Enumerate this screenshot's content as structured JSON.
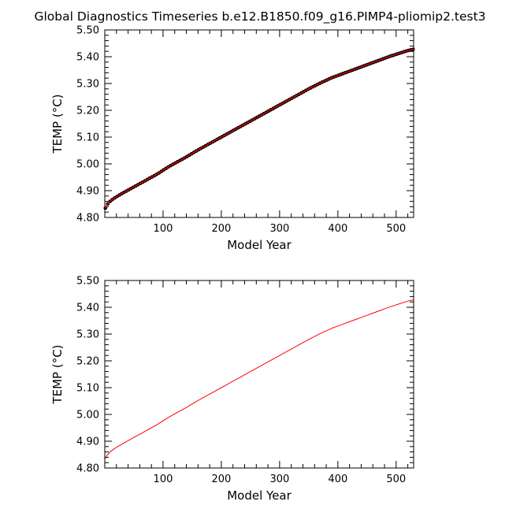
{
  "title": "Global Diagnostics Timeseries b.e12.B1850.f09_g16.PIMP4-pliomip2.test3",
  "colors": {
    "line": "#ff0000",
    "marker": "#000000",
    "axis": "#000000"
  },
  "chart_data": [
    {
      "type": "line",
      "xlabel": "Model Year",
      "ylabel": "TEMP (°C)",
      "xlim": [
        0,
        530
      ],
      "ylim": [
        4.8,
        5.5
      ],
      "x_ticks": [
        100,
        200,
        300,
        400,
        500
      ],
      "y_ticks": [
        "4.80",
        "4.90",
        "5.00",
        "5.10",
        "5.20",
        "5.30",
        "5.40",
        "5.50"
      ],
      "markers": true,
      "series": [
        {
          "x": [
            1,
            3,
            6,
            10,
            15,
            20,
            30,
            40,
            50,
            60,
            70,
            80,
            90,
            100,
            110,
            120,
            130,
            140,
            150,
            160,
            170,
            180,
            190,
            200,
            210,
            220,
            230,
            240,
            250,
            260,
            270,
            280,
            290,
            300,
            310,
            320,
            330,
            340,
            350,
            360,
            370,
            380,
            390,
            400,
            410,
            420,
            430,
            440,
            450,
            460,
            470,
            480,
            490,
            500,
            510,
            520,
            530
          ],
          "values": [
            4.835,
            4.845,
            4.853,
            4.862,
            4.87,
            4.877,
            4.89,
            4.902,
            4.914,
            4.926,
            4.938,
            4.95,
            4.962,
            4.976,
            4.99,
            5.002,
            5.014,
            5.026,
            5.039,
            5.052,
            5.064,
            5.076,
            5.088,
            5.1,
            5.112,
            5.124,
            5.136,
            5.148,
            5.16,
            5.172,
            5.184,
            5.196,
            5.208,
            5.22,
            5.232,
            5.244,
            5.256,
            5.268,
            5.28,
            5.291,
            5.302,
            5.312,
            5.322,
            5.33,
            5.338,
            5.346,
            5.354,
            5.362,
            5.37,
            5.378,
            5.386,
            5.394,
            5.402,
            5.409,
            5.416,
            5.423,
            5.428
          ]
        }
      ]
    },
    {
      "type": "line",
      "xlabel": "Model Year",
      "ylabel": "TEMP (°C)",
      "xlim": [
        0,
        530
      ],
      "ylim": [
        4.8,
        5.5
      ],
      "x_ticks": [
        100,
        200,
        300,
        400,
        500
      ],
      "y_ticks": [
        "4.80",
        "4.90",
        "5.00",
        "5.10",
        "5.20",
        "5.30",
        "5.40",
        "5.50"
      ],
      "markers": false,
      "series": [
        {
          "x": [
            1,
            3,
            6,
            10,
            15,
            20,
            30,
            40,
            50,
            60,
            70,
            80,
            90,
            100,
            110,
            120,
            130,
            140,
            150,
            160,
            170,
            180,
            190,
            200,
            210,
            220,
            230,
            240,
            250,
            260,
            270,
            280,
            290,
            300,
            310,
            320,
            330,
            340,
            350,
            360,
            370,
            380,
            390,
            400,
            410,
            420,
            430,
            440,
            450,
            460,
            470,
            480,
            490,
            500,
            510,
            520,
            530
          ],
          "values": [
            4.835,
            4.845,
            4.853,
            4.862,
            4.87,
            4.877,
            4.89,
            4.902,
            4.914,
            4.926,
            4.938,
            4.95,
            4.962,
            4.976,
            4.99,
            5.002,
            5.014,
            5.026,
            5.039,
            5.052,
            5.064,
            5.076,
            5.088,
            5.1,
            5.112,
            5.124,
            5.136,
            5.148,
            5.16,
            5.172,
            5.184,
            5.196,
            5.208,
            5.22,
            5.232,
            5.244,
            5.256,
            5.268,
            5.28,
            5.291,
            5.302,
            5.312,
            5.322,
            5.33,
            5.338,
            5.346,
            5.354,
            5.362,
            5.37,
            5.378,
            5.386,
            5.394,
            5.402,
            5.409,
            5.416,
            5.423,
            5.428
          ]
        }
      ]
    }
  ]
}
